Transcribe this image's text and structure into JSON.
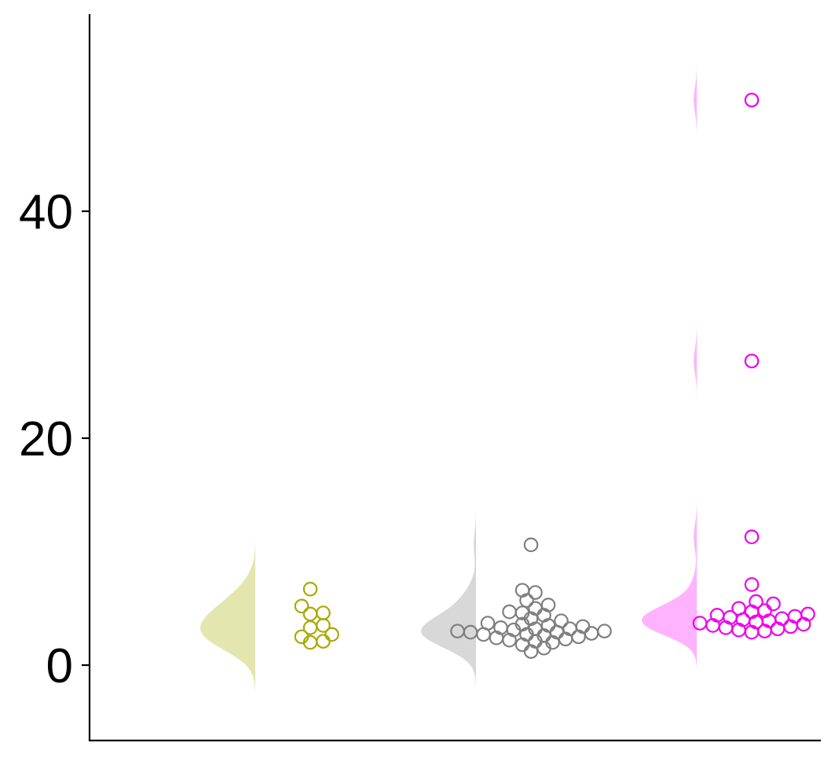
{
  "chart_data": {
    "type": "raincloud",
    "title": "",
    "xlabel": "",
    "ylabel": "",
    "ylim": [
      -6.6,
      57.3
    ],
    "y_ticks": [
      0,
      20,
      40
    ],
    "y_tick_labels": [
      "0",
      "20",
      "40"
    ],
    "x_tick_labels": [],
    "grid": false,
    "legend": "none",
    "series": [
      {
        "color_fill": "#e4e6b0",
        "color_point": "#aaaa00",
        "points": [
          6.7,
          5.2,
          4.6,
          4.5,
          3.5,
          3.3,
          2.7,
          2.5,
          2.1,
          2.0
        ]
      },
      {
        "color_fill": "#d8d8d8",
        "color_point": "#7f7f7f",
        "points": [
          10.6,
          6.6,
          6.4,
          5.7,
          5.3,
          5.0,
          4.7,
          4.6,
          4.4,
          4.1,
          3.9,
          3.7,
          3.6,
          3.5,
          3.4,
          3.3,
          3.2,
          3.2,
          3.1,
          3.0,
          3.0,
          2.9,
          2.9,
          2.8,
          2.7,
          2.7,
          2.6,
          2.5,
          2.4,
          2.3,
          2.2,
          2.1,
          2.0,
          1.8,
          1.5,
          1.2
        ]
      },
      {
        "color_fill": "#ffb3ff",
        "color_point": "#ee00ee",
        "points": [
          49.8,
          26.8,
          11.3,
          7.1,
          5.6,
          5.4,
          5.0,
          4.8,
          4.7,
          4.5,
          4.4,
          4.3,
          4.2,
          4.1,
          4.0,
          3.9,
          3.8,
          3.7,
          3.6,
          3.5,
          3.4,
          3.3,
          3.2,
          3.1,
          3.0,
          2.9
        ]
      }
    ]
  }
}
